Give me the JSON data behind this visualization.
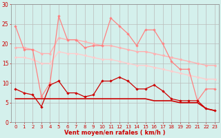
{
  "x": [
    0,
    1,
    2,
    3,
    4,
    5,
    6,
    7,
    8,
    9,
    10,
    11,
    12,
    13,
    14,
    15,
    16,
    17,
    18,
    19,
    20,
    21,
    22,
    23
  ],
  "line_rafales": [
    24.5,
    18.5,
    18.5,
    6.5,
    10.0,
    27.0,
    21.0,
    21.0,
    19.0,
    19.5,
    19.5,
    26.5,
    24.5,
    22.5,
    19.5,
    23.5,
    23.5,
    20.0,
    15.5,
    13.5,
    13.5,
    5.5,
    8.5,
    8.5
  ],
  "line_smooth_upper": [
    19.0,
    19.0,
    18.5,
    17.5,
    17.5,
    21.5,
    21.0,
    21.0,
    20.5,
    20.0,
    19.5,
    19.5,
    19.0,
    18.5,
    18.0,
    18.0,
    17.5,
    17.0,
    16.5,
    16.0,
    15.5,
    15.0,
    14.5,
    14.5
  ],
  "line_smooth_lower": [
    16.5,
    16.5,
    16.0,
    15.0,
    15.0,
    18.0,
    17.5,
    17.5,
    17.0,
    16.5,
    16.0,
    16.0,
    15.5,
    15.0,
    14.5,
    14.5,
    14.0,
    13.5,
    13.0,
    12.5,
    12.0,
    11.5,
    11.0,
    11.0
  ],
  "line_vent_moy": [
    8.5,
    7.5,
    7.0,
    4.0,
    9.5,
    10.5,
    7.5,
    7.5,
    6.5,
    7.0,
    10.5,
    10.5,
    11.5,
    10.5,
    8.5,
    8.5,
    9.5,
    8.0,
    6.0,
    5.5,
    5.5,
    5.5,
    3.5,
    3.0
  ],
  "line_flat": [
    6.0,
    6.0,
    6.0,
    6.0,
    6.0,
    6.0,
    6.0,
    6.0,
    6.0,
    6.0,
    6.0,
    6.0,
    6.0,
    6.0,
    6.0,
    6.0,
    5.5,
    5.5,
    5.5,
    5.0,
    5.0,
    5.0,
    3.5,
    3.0
  ],
  "color_rafales": "#FF8080",
  "color_smooth_upper": "#FFB0B0",
  "color_smooth_lower": "#FFCCCC",
  "color_vent": "#CC0000",
  "color_flat": "#CC0000",
  "bg_color": "#D4F0EC",
  "grid_color": "#BBBBBB",
  "xlabel": "Vent moyen/en rafales ( km/h )",
  "ylim": [
    0,
    30
  ],
  "xlim": [
    -0.5,
    23.5
  ],
  "yticks": [
    0,
    5,
    10,
    15,
    20,
    25,
    30
  ],
  "xticks": [
    0,
    1,
    2,
    3,
    4,
    5,
    6,
    7,
    8,
    9,
    10,
    11,
    12,
    13,
    14,
    15,
    16,
    17,
    18,
    19,
    20,
    21,
    22,
    23
  ]
}
